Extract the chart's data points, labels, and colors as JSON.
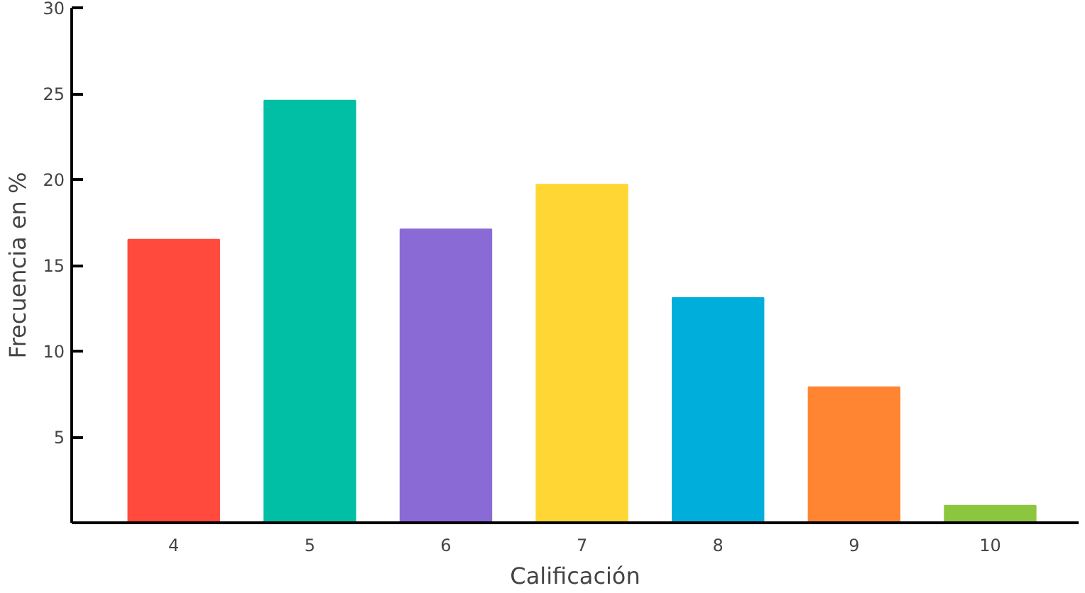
{
  "chart_data": {
    "type": "bar",
    "xlabel": "Calificación",
    "ylabel": "Frecuencia en %",
    "categories": [
      "4",
      "5",
      "6",
      "7",
      "8",
      "9",
      "10"
    ],
    "values": [
      16.5,
      24.6,
      17.1,
      19.7,
      13.1,
      7.9,
      1
    ],
    "colors": [
      "#ff4a3d",
      "#00bfa5",
      "#8a6bd6",
      "#ffd633",
      "#00aedb",
      "#ff8533",
      "#8cc63f"
    ],
    "ylim": [
      0,
      30
    ],
    "yticks": [
      5,
      10,
      15,
      20,
      25,
      30
    ],
    "grid": false
  }
}
